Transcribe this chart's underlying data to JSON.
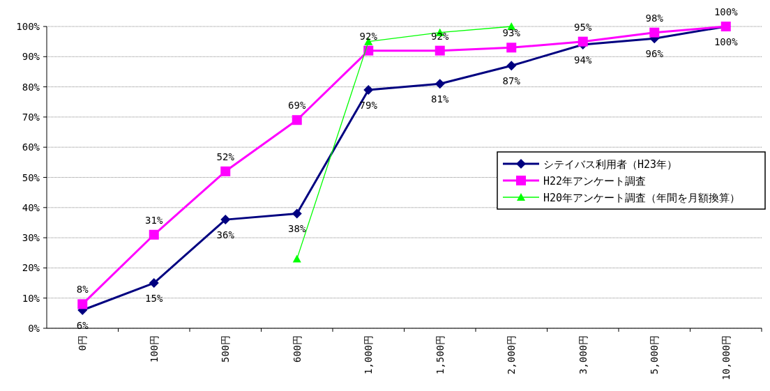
{
  "chart_data": {
    "type": "line",
    "categories": [
      "0円",
      "100円",
      "500円",
      "600円",
      "1,000円",
      "1,500円",
      "2,000円",
      "3,000円",
      "5,000円",
      "10,000円"
    ],
    "series": [
      {
        "name": "シテイバス利用者（H23年）",
        "color": "#000080",
        "marker": "diamond",
        "values": [
          6,
          15,
          36,
          38,
          79,
          81,
          87,
          94,
          96,
          100
        ],
        "value_labels": [
          "6%",
          "15%",
          "36%",
          "38%",
          "79%",
          "81%",
          "87%",
          "94%",
          "96%",
          "100%"
        ]
      },
      {
        "name": "H22年アンケート調査",
        "color": "#ff00ff",
        "marker": "square",
        "values": [
          8,
          31,
          52,
          69,
          92,
          92,
          93,
          95,
          98,
          100
        ],
        "value_labels": [
          "8%",
          "31%",
          "52%",
          "69%",
          "92%",
          "92%",
          "93%",
          "95%",
          "98%",
          "100%"
        ]
      },
      {
        "name": "H20年アンケート調査（年間を月額換算）",
        "color": "#00ff00",
        "marker": "triangle",
        "values": [
          null,
          null,
          null,
          23,
          95,
          98,
          100,
          null,
          null,
          null
        ]
      }
    ],
    "ylim": [
      0,
      100
    ],
    "yticks": [
      {
        "value": 0,
        "label": "0%"
      },
      {
        "value": 10,
        "label": "10%"
      },
      {
        "value": 20,
        "label": "20%"
      },
      {
        "value": 30,
        "label": "30%"
      },
      {
        "value": 40,
        "label": "40%"
      },
      {
        "value": 50,
        "label": "50%"
      },
      {
        "value": 60,
        "label": "60%"
      },
      {
        "value": 70,
        "label": "70%"
      },
      {
        "value": 80,
        "label": "80%"
      },
      {
        "value": 90,
        "label": "90%"
      },
      {
        "value": 100,
        "label": "100%"
      }
    ],
    "grid": "y",
    "legend": "right"
  }
}
